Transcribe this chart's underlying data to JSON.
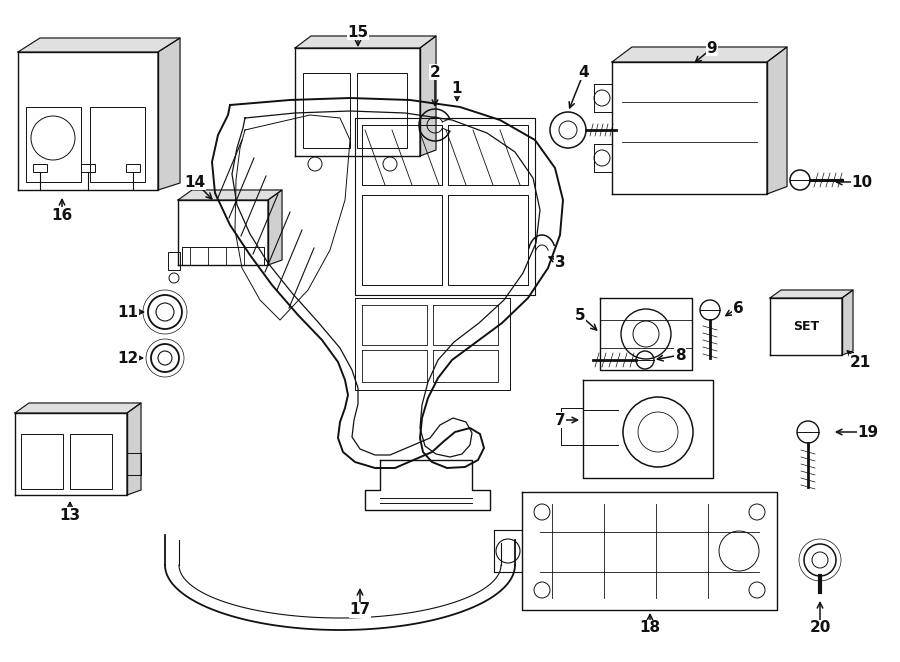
{
  "bg_color": "#ffffff",
  "line_color": "#111111",
  "lw": 1.0,
  "figw": 9.0,
  "figh": 6.62,
  "dpi": 100
}
